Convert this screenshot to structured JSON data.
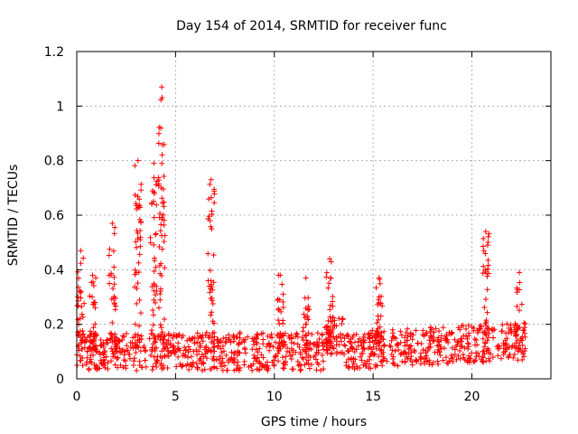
{
  "chart_data": {
    "type": "scatter",
    "title": "Day 154 of 2014, SRMTID for receiver func",
    "xlabel": "GPS time / hours",
    "ylabel": "SRMTID / TECUs",
    "xlim": [
      0,
      24
    ],
    "ylim": [
      0,
      1.2
    ],
    "xticks": [
      0,
      5,
      10,
      15,
      20
    ],
    "xtick_labels": [
      "0",
      "5",
      "10",
      "15",
      "20"
    ],
    "yticks": [
      0,
      0.2,
      0.4,
      0.6,
      0.8,
      1,
      1.2
    ],
    "ytick_labels": [
      "0",
      "0.2",
      "0.4",
      "0.6",
      "0.8",
      "1",
      "1.2"
    ],
    "grid": true,
    "marker": "plus",
    "color": "#ff0000",
    "x_data_end": 22.7,
    "baseline": {
      "min": 0.04,
      "max": 0.2,
      "typical": 0.1
    },
    "bursts": [
      {
        "x": 0.2,
        "peak": 0.47
      },
      {
        "x": 0.8,
        "peak": 0.38
      },
      {
        "x": 1.8,
        "peak": 0.57
      },
      {
        "x": 3.1,
        "peak": 0.8
      },
      {
        "x": 3.9,
        "peak": 0.79
      },
      {
        "x": 4.3,
        "peak": 1.07
      },
      {
        "x": 6.8,
        "peak": 0.73
      },
      {
        "x": 10.3,
        "peak": 0.38
      },
      {
        "x": 11.6,
        "peak": 0.37
      },
      {
        "x": 12.8,
        "peak": 0.44
      },
      {
        "x": 15.3,
        "peak": 0.37
      },
      {
        "x": 20.7,
        "peak": 0.54
      },
      {
        "x": 22.4,
        "peak": 0.39
      }
    ]
  }
}
